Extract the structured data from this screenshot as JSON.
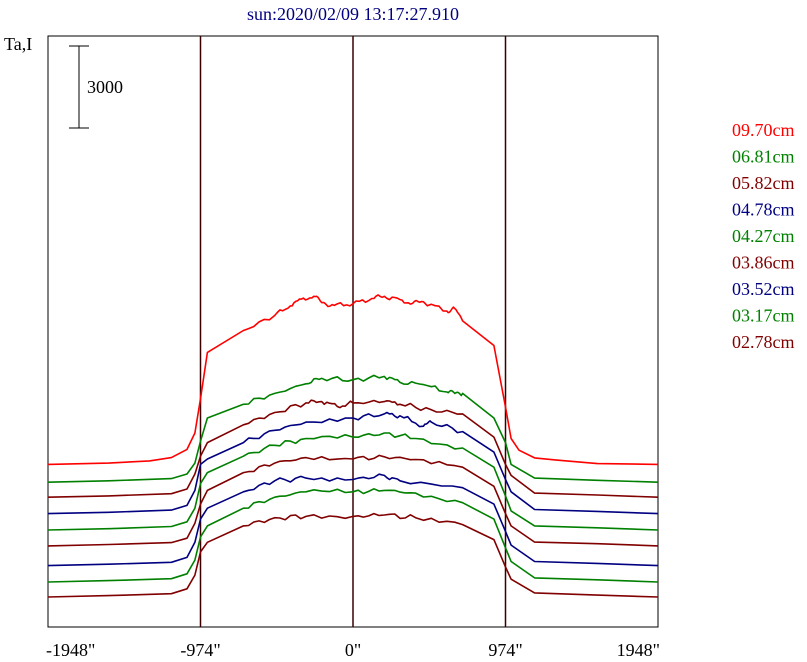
{
  "title": "sun:2020/02/09 13:17:27.910",
  "y_label": "Ta,I",
  "scale_bar_label": "3000",
  "chart_data": {
    "type": "line",
    "title": "sun:2020/02/09 13:17:27.910",
    "xlabel": "",
    "ylabel": "Ta,I",
    "x_unit": "arcsec",
    "xlim": [
      -1948,
      1948
    ],
    "x_ticks": [
      -1948,
      -974,
      0,
      974,
      1948
    ],
    "x_tick_labels": [
      "-1948\"",
      "-974\"",
      "0\"",
      "974\"",
      "1948\""
    ],
    "vertical_lines": [
      -974,
      0,
      974
    ],
    "grid": false,
    "legend_position": "right",
    "scale_bar_value": 3000,
    "series": [
      {
        "name": "09.70cm",
        "color": "#ff0000",
        "baseline": 2900,
        "amplitude": 6150,
        "x": [
          -1948,
          -1560,
          -1300,
          -1160,
          -1060,
          -1010,
          -974,
          -930,
          -700,
          -500,
          -400,
          -330,
          -250,
          -200,
          -120,
          0,
          120,
          200,
          300,
          380,
          450,
          600,
          650,
          700,
          900,
          974,
          1010,
          1060,
          1160,
          1300,
          1560,
          1948
        ],
        "y": [
          2900,
          2950,
          3030,
          3150,
          3450,
          4050,
          5300,
          7000,
          7800,
          8350,
          8700,
          8950,
          9050,
          8820,
          8720,
          8780,
          8970,
          9050,
          8930,
          8790,
          8850,
          8510,
          8600,
          8150,
          7250,
          5000,
          3850,
          3420,
          3140,
          3060,
          2930,
          2900
        ]
      },
      {
        "name": "06.81cm",
        "color": "#008000",
        "baseline": 2250,
        "amplitude": 3950,
        "x": [
          -1948,
          -1560,
          -1160,
          -1060,
          -1010,
          -974,
          -930,
          -700,
          -500,
          -300,
          -200,
          0,
          200,
          300,
          450,
          600,
          650,
          700,
          900,
          974,
          1010,
          1160,
          1560,
          1948
        ],
        "y": [
          2250,
          2300,
          2380,
          2550,
          2950,
          3750,
          4600,
          5100,
          5500,
          5850,
          6050,
          6000,
          6120,
          5900,
          5820,
          5550,
          5500,
          5500,
          4600,
          3700,
          2900,
          2400,
          2320,
          2250
        ]
      },
      {
        "name": "05.82cm",
        "color": "#800000",
        "baseline": 1700,
        "amplitude": 3700,
        "x": [
          -1948,
          -1560,
          -1160,
          -1060,
          -1010,
          -974,
          -930,
          -700,
          -500,
          -300,
          -200,
          -100,
          0,
          200,
          300,
          500,
          700,
          900,
          974,
          1010,
          1160,
          1560,
          1948
        ],
        "y": [
          1700,
          1750,
          1830,
          2000,
          2550,
          3200,
          3700,
          4350,
          4800,
          5150,
          5200,
          5020,
          5150,
          5200,
          5100,
          4900,
          4750,
          3900,
          2900,
          2500,
          1850,
          1780,
          1700
        ]
      },
      {
        "name": "04.78cm",
        "color": "#000080",
        "baseline": 1100,
        "amplitude": 3700,
        "x": [
          -1948,
          -1560,
          -1160,
          -1060,
          -1010,
          -974,
          -930,
          -700,
          -500,
          -300,
          0,
          200,
          300,
          450,
          500,
          700,
          900,
          974,
          1010,
          1160,
          1560,
          1948
        ],
        "y": [
          1100,
          1150,
          1230,
          1400,
          1950,
          2900,
          3100,
          3700,
          4150,
          4450,
          4600,
          4750,
          4680,
          4300,
          4450,
          4100,
          3350,
          2350,
          1900,
          1250,
          1180,
          1100
        ]
      },
      {
        "name": "04.27cm",
        "color": "#008000",
        "baseline": 500,
        "amplitude": 3550,
        "x": [
          -1948,
          -1560,
          -1160,
          -1060,
          -1010,
          -974,
          -930,
          -700,
          -500,
          -300,
          0,
          200,
          400,
          700,
          900,
          974,
          1010,
          1160,
          1560,
          1948
        ],
        "y": [
          500,
          550,
          630,
          800,
          1300,
          2200,
          2600,
          3200,
          3600,
          3850,
          3900,
          4050,
          3850,
          3500,
          2800,
          1750,
          1200,
          650,
          580,
          500
        ]
      },
      {
        "name": "03.86cm",
        "color": "#800000",
        "baseline": -80,
        "amplitude": 3300,
        "x": [
          -1948,
          -1560,
          -1160,
          -1060,
          -1010,
          -974,
          -930,
          -700,
          -500,
          -300,
          0,
          200,
          400,
          700,
          900,
          974,
          1010,
          1160,
          1560,
          1948
        ],
        "y": [
          -80,
          -30,
          40,
          200,
          750,
          1450,
          1950,
          2600,
          2950,
          3150,
          3100,
          3180,
          3080,
          2800,
          2100,
          1100,
          650,
          60,
          0,
          -80
        ]
      },
      {
        "name": "03.52cm",
        "color": "#000080",
        "baseline": -800,
        "amplitude": 3200,
        "x": [
          -1948,
          -1560,
          -1160,
          -1060,
          -1010,
          -974,
          -930,
          -700,
          -500,
          -300,
          0,
          200,
          300,
          700,
          900,
          974,
          1010,
          1160,
          1560,
          1948
        ],
        "y": [
          -800,
          -750,
          -680,
          -500,
          50,
          900,
          1300,
          1900,
          2300,
          2400,
          2350,
          2500,
          2300,
          2050,
          1450,
          450,
          -50,
          -650,
          -720,
          -800
        ]
      },
      {
        "name": "03.17cm",
        "color": "#008000",
        "baseline": -1400,
        "amplitude": 3150,
        "x": [
          -1948,
          -1560,
          -1160,
          -1060,
          -1010,
          -974,
          -930,
          -700,
          -500,
          -300,
          0,
          200,
          400,
          700,
          900,
          974,
          1010,
          1160,
          1560,
          1948
        ],
        "y": [
          -1400,
          -1350,
          -1280,
          -1100,
          -600,
          250,
          650,
          1300,
          1700,
          1900,
          1900,
          1950,
          1850,
          1500,
          900,
          -150,
          -650,
          -1250,
          -1320,
          -1400
        ]
      },
      {
        "name": "02.78cm",
        "color": "#800000",
        "baseline": -1950,
        "amplitude": 2950,
        "x": [
          -1948,
          -1560,
          -1160,
          -1060,
          -1010,
          -974,
          -930,
          -700,
          -500,
          -300,
          0,
          200,
          400,
          700,
          900,
          974,
          1010,
          1160,
          1560,
          1948
        ],
        "y": [
          -1950,
          -1900,
          -1830,
          -1650,
          -1150,
          -300,
          50,
          650,
          950,
          1000,
          1000,
          1050,
          950,
          700,
          150,
          -850,
          -1300,
          -1800,
          -1880,
          -1950
        ]
      }
    ]
  }
}
